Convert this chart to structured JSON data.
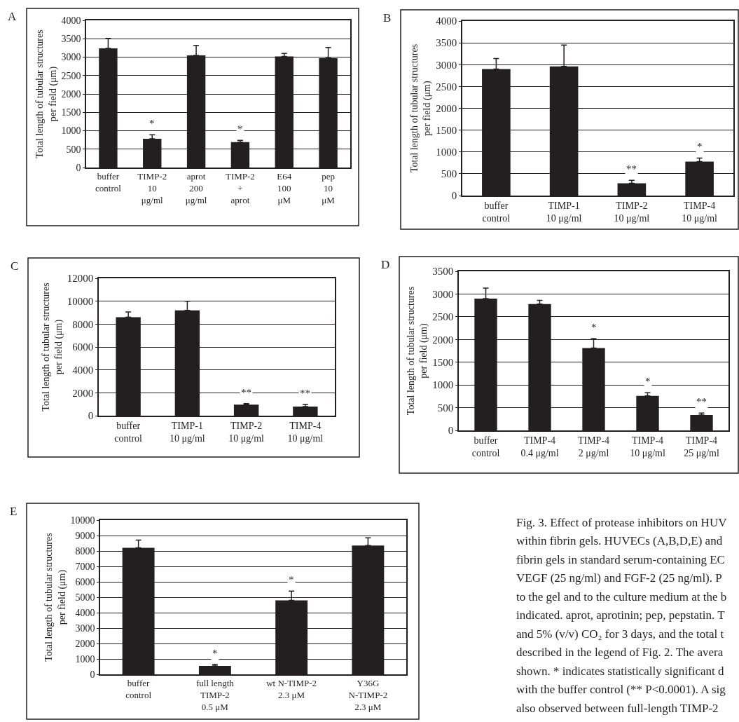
{
  "chart_data": [
    {
      "type": "bar",
      "title": "A",
      "ylabel": "Total length of tubular structures\nper field (μm)",
      "categories": [
        "buffer\ncontrol",
        "TIMP-2\n10\nμg/ml",
        "aprot\n200\nμg/ml",
        "TIMP-2\n+\naprot",
        "E64\n100\nμM",
        "pep\n10\nμM"
      ],
      "color": "#231f20",
      "values": [
        3240,
        780,
        3050,
        690,
        3020,
        2970
      ],
      "errors": [
        [
          3240,
          3510
        ],
        [
          780,
          890
        ],
        [
          3050,
          3320
        ],
        [
          690,
          740
        ],
        [
          3020,
          3100
        ],
        [
          2970,
          3260
        ]
      ],
      "ylim": [
        0,
        4000
      ],
      "yticks": [
        0,
        500,
        1000,
        1500,
        2000,
        2500,
        3000,
        3500,
        4000
      ],
      "grid": "y",
      "annotations": [
        {
          "text": "*",
          "x": "TIMP-2\n10\nμg/ml",
          "y": 890
        },
        {
          "text": "*",
          "x": "TIMP-2\n+\naprot",
          "y": 740
        }
      ]
    },
    {
      "type": "bar",
      "title": "B",
      "ylabel": "Total length of tubular structures\nper field (μm)",
      "categories": [
        "buffer\ncontrol",
        "TIMP-1\n10 μg/ml",
        "TIMP-2\n10 μg/ml",
        "TIMP-4\n10 μg/ml"
      ],
      "color": "#231f20",
      "values": [
        2900,
        2960,
        280,
        780
      ],
      "errors": [
        [
          2900,
          3140
        ],
        [
          2960,
          3450
        ],
        [
          280,
          350
        ],
        [
          780,
          860
        ]
      ],
      "ylim": [
        0,
        4000
      ],
      "yticks": [
        0,
        500,
        1000,
        1500,
        2000,
        2500,
        3000,
        3500,
        4000
      ],
      "grid": "y",
      "annotations": [
        {
          "text": "**",
          "x": "TIMP-2\n10 μg/ml",
          "y": 350
        },
        {
          "text": "*",
          "x": "TIMP-4\n10 μg/ml",
          "y": 860
        }
      ]
    },
    {
      "type": "bar",
      "title": "C",
      "ylabel": "Total length of tubular structures\nper field (μm)",
      "categories": [
        "buffer\ncontrol",
        "TIMP-1\n10 μg/ml",
        "TIMP-2\n10 μg/ml",
        "TIMP-4\n10 μg/ml"
      ],
      "color": "#231f20",
      "values": [
        8600,
        9200,
        960,
        800
      ],
      "errors": [
        [
          8600,
          9060
        ],
        [
          9200,
          10000
        ],
        [
          960,
          1060
        ],
        [
          800,
          980
        ]
      ],
      "ylim": [
        0,
        12000
      ],
      "yticks": [
        0,
        2000,
        4000,
        6000,
        8000,
        10000,
        12000
      ],
      "grid": "y",
      "annotations": [
        {
          "text": "**",
          "x": "TIMP-2\n10 μg/ml",
          "y": 1060
        },
        {
          "text": "**",
          "x": "TIMP-4\n10 μg/ml",
          "y": 980
        }
      ]
    },
    {
      "type": "bar",
      "title": "D",
      "ylabel": "Total length of tubular structures\nper field (μm)",
      "categories": [
        "buffer\ncontrol",
        "TIMP-4\n0.4 μg/ml",
        "TIMP-4\n2 μg/ml",
        "TIMP-4\n10 μg/ml",
        "TIMP-4\n25 μg/ml"
      ],
      "color": "#231f20",
      "values": [
        2900,
        2780,
        1810,
        760,
        340
      ],
      "errors": [
        [
          2900,
          3130
        ],
        [
          2780,
          2860
        ],
        [
          1810,
          2020
        ],
        [
          760,
          830
        ],
        [
          340,
          380
        ]
      ],
      "ylim": [
        0,
        3500
      ],
      "yticks": [
        0,
        500,
        1000,
        1500,
        2000,
        2500,
        3000,
        3500
      ],
      "grid": "y",
      "annotations": [
        {
          "text": "*",
          "x": "TIMP-4\n2 μg/ml",
          "y": 2020
        },
        {
          "text": "*",
          "x": "TIMP-4\n10 μg/ml",
          "y": 830
        },
        {
          "text": "**",
          "x": "TIMP-4\n25 μg/ml",
          "y": 380
        }
      ]
    },
    {
      "type": "bar",
      "title": "E",
      "ylabel": "Total length of tubular structures\nper field (μm)",
      "categories": [
        "buffer\ncontrol",
        "full length\nTIMP-2\n0.5 μM",
        "wt N-TIMP-2\n2.3 μM",
        "Y36G\nN-TIMP-2\n2.3 μM"
      ],
      "color": "#231f20",
      "values": [
        8200,
        550,
        4800,
        8350
      ],
      "errors": [
        [
          8200,
          8700
        ],
        [
          550,
          650
        ],
        [
          4800,
          5400
        ],
        [
          8350,
          8850
        ]
      ],
      "ylim": [
        0,
        10000
      ],
      "yticks": [
        0,
        1000,
        2000,
        3000,
        4000,
        5000,
        6000,
        7000,
        8000,
        9000,
        10000
      ],
      "grid": "y",
      "annotations": [
        {
          "text": "*",
          "x": "full length\nTIMP-2\n0.5 μM",
          "y": 650
        },
        {
          "text": "*",
          "x": "wt N-TIMP-2\n2.3 μM",
          "y": 5400
        }
      ]
    },
    {
      "type": "other",
      "annotations": [
        "Fig. 3. Effect of protease inhibitors on HUV",
        "within fibrin gels. HUVECs (A,B,D,E) and",
        "fibrin gels in standard serum-containing EC",
        "VEGF (25 ng/ml) and FGF-2 (25 ng/ml). P",
        "to the gel and to the culture medium at the b",
        "indicated. aprot, aprotinin; pep, pepstatin. T",
        "and 5% (v/v) CO₂ for 3 days, and the total t",
        "described in the legend of Fig. 2. The avera",
        "shown. * indicates statistically significant d",
        "with the buffer control (** P<0.0001). A sig",
        "also observed between full-length TIMP-2"
      ]
    }
  ]
}
